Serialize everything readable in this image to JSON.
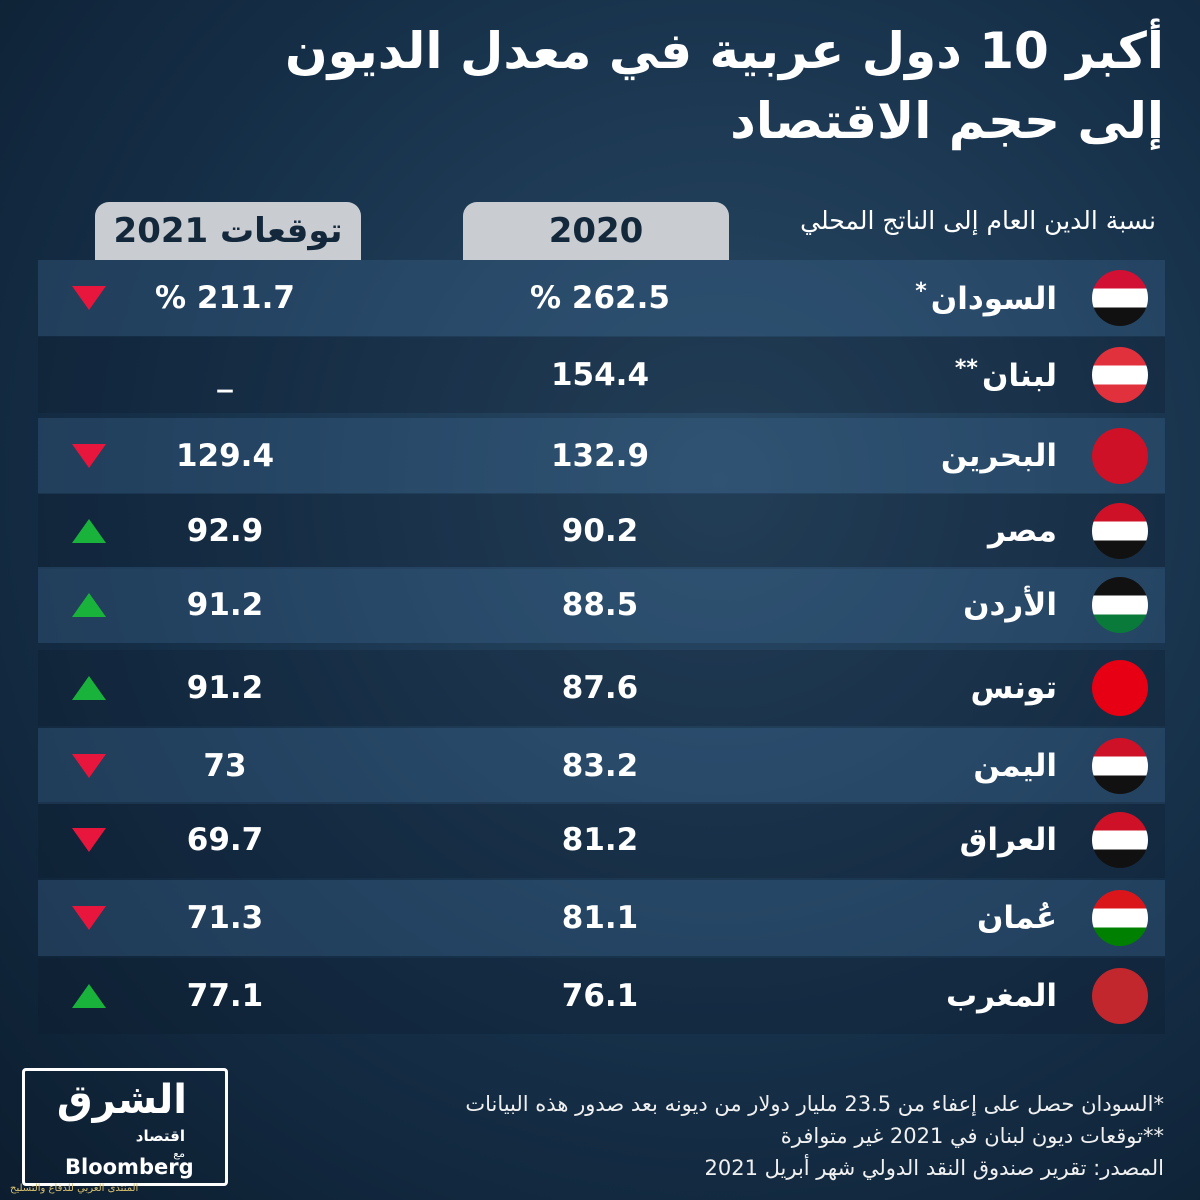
{
  "header": {
    "title_line1": "أكبر 10 دول عربية في معدل الديون",
    "title_line2": "إلى حجم الاقتصاد"
  },
  "table": {
    "columns": [
      "نسبة الدين العام إلى الناتج المحلي",
      "2020",
      "توقعات 2021"
    ],
    "rows": [
      {
        "country": "السودان",
        "note": "*",
        "v2020": "% 262.5",
        "v2021": "% 211.7",
        "trend": "down"
      },
      {
        "country": "لبنان",
        "note": "**",
        "v2020": "154.4",
        "v2021": "_",
        "trend": null
      },
      {
        "country": "البحرين",
        "note": null,
        "v2020": "132.9",
        "v2021": "129.4",
        "trend": "down"
      },
      {
        "country": "مصر",
        "note": null,
        "v2020": "90.2",
        "v2021": "92.9",
        "trend": "up"
      },
      {
        "country": "الأردن",
        "note": null,
        "v2020": "88.5",
        "v2021": "91.2",
        "trend": "up"
      },
      {
        "country": "تونس",
        "note": null,
        "v2020": "87.6",
        "v2021": "91.2",
        "trend": "up"
      },
      {
        "country": "اليمن",
        "note": null,
        "v2020": "83.2",
        "v2021": "73",
        "trend": "down"
      },
      {
        "country": "العراق",
        "note": null,
        "v2020": "81.2",
        "v2021": "69.7",
        "trend": "down"
      },
      {
        "country": "عُمان",
        "note": null,
        "v2020": "81.1",
        "v2021": "71.3",
        "trend": "down"
      },
      {
        "country": "المغرب",
        "note": null,
        "v2020": "76.1",
        "v2021": "77.1",
        "trend": "up"
      }
    ]
  },
  "footnotes": [
    "*السودان حصل على إعفاء من 23.5 مليار دولار من ديونه بعد صدور هذه البيانات",
    "**توقعات ديون لبنان في 2021 غير متوافرة",
    "المصدر: تقرير صندوق النقد الدولي شهر أبريل 2021"
  ],
  "logo": {
    "name": "الشرق",
    "sub": "اقتصاد",
    "with": "مع",
    "partner": "Bloomberg"
  },
  "watermark": "المنتدى العربي للدفاع والتسليح"
}
